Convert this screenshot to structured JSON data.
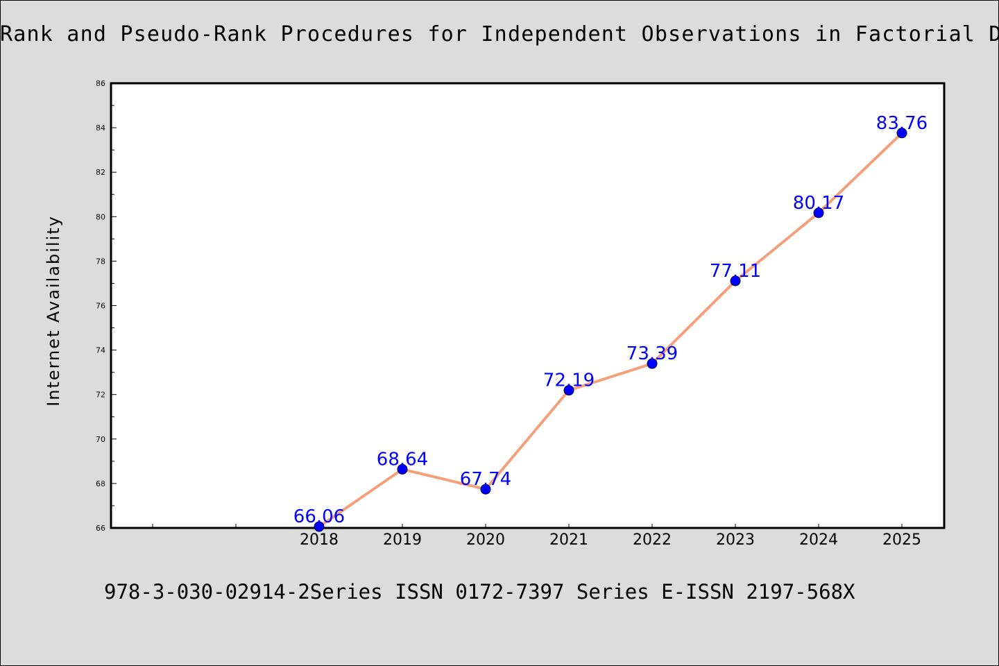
{
  "chart_data": {
    "type": "line",
    "title": "Rank and Pseudo-Rank Procedures for Independent Observations in Factorial Design",
    "xlabel": "",
    "ylabel": "Internet Availability",
    "categories": [
      "2018",
      "2019",
      "2020",
      "2021",
      "2022",
      "2023",
      "2024",
      "2025"
    ],
    "series": [
      {
        "values": [
          66.06,
          68.64,
          67.74,
          72.19,
          73.39,
          77.11,
          80.17,
          83.76
        ]
      }
    ],
    "value_labels": [
      "66.06",
      "68.64",
      "67.74",
      "72.19",
      "73.39",
      "77.11",
      "80.17",
      "83.76"
    ],
    "ylim": [
      66,
      86
    ],
    "yticks": [
      "66",
      "68",
      "70",
      "72",
      "74",
      "76",
      "78",
      "80",
      "82",
      "84",
      "86"
    ],
    "grid": false,
    "line_color": "#f4a07a",
    "marker_color": "#0000ff",
    "label_color": "#0000ff"
  },
  "footer": {
    "text": "978-3-030-02914-2Series ISSN 0172-7397 Series E-ISSN 2197-568X"
  }
}
